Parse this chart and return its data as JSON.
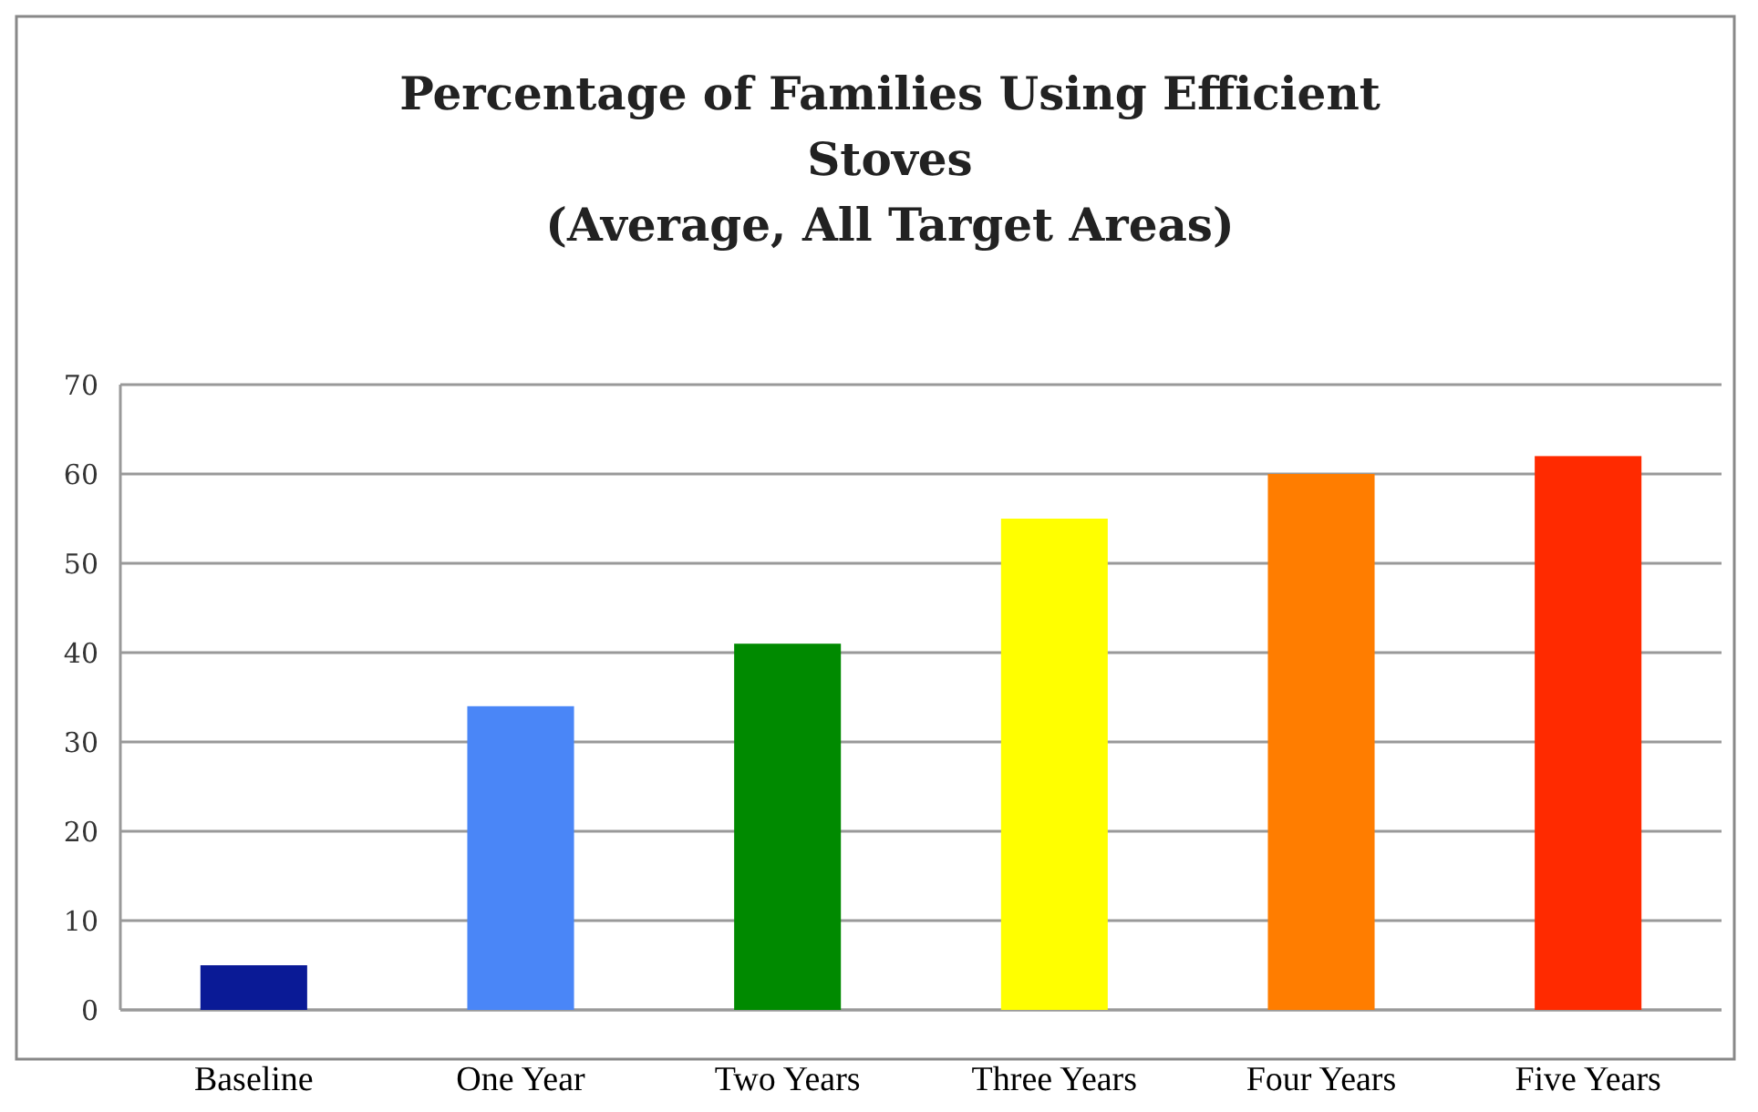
{
  "chart_data": {
    "type": "bar",
    "title": "Percentage of Families Using Efficient Stoves",
    "subtitle": "(Average, All Target Areas)",
    "categories": [
      "Baseline",
      "One Year",
      "Two Years",
      "Three Years",
      "Four Years",
      "Five Years"
    ],
    "values": [
      5,
      34,
      41,
      55,
      60,
      62
    ],
    "colors": [
      "#0a1a96",
      "#4a86f7",
      "#008a00",
      "#ffff00",
      "#ff7d00",
      "#ff2a00"
    ],
    "ylim": [
      0,
      70
    ],
    "yticks": [
      0,
      10,
      20,
      30,
      40,
      50,
      60,
      70
    ],
    "grid": "y"
  }
}
